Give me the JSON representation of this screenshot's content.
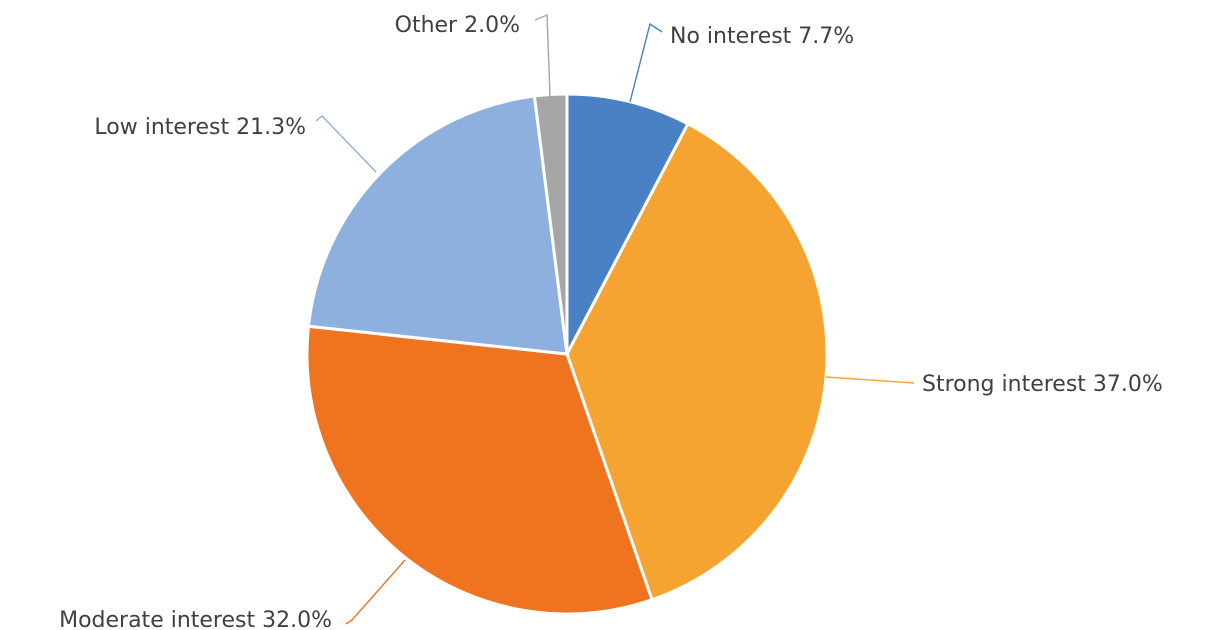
{
  "chart_data": {
    "type": "pie",
    "title": "",
    "labels": [
      "No interest",
      "Strong interest",
      "Moderate interest",
      "Low interest",
      "Other"
    ],
    "values": [
      7.7,
      37.0,
      32.0,
      21.3,
      2.0
    ],
    "colors": [
      "#4a80c4",
      "#f5a431",
      "#f07320",
      "#8eb0df",
      "#a6a6a6"
    ],
    "data_labels": [
      "No interest 7.7%",
      "Strong interest 37.0%",
      "Moderate interest 32.0%",
      "Low interest 21.3%",
      "Other 2.0%"
    ],
    "legend": "none",
    "start_angle_deg": 0,
    "direction": "clockwise"
  }
}
